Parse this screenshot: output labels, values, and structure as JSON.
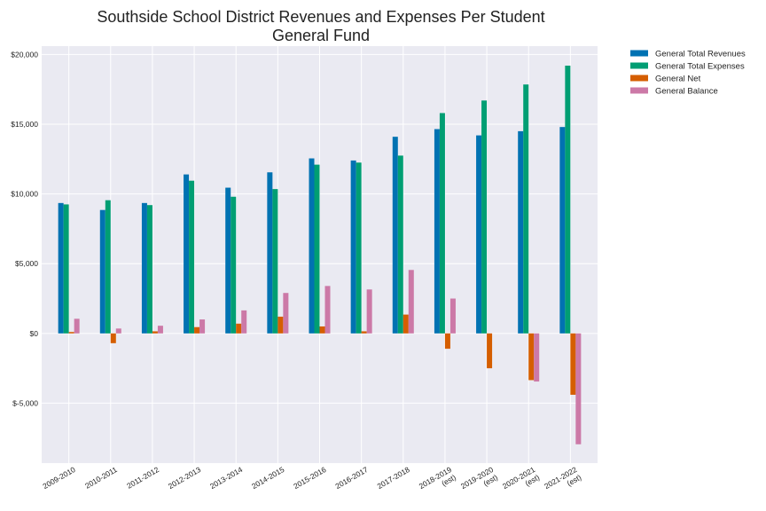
{
  "chart_data": {
    "type": "bar",
    "title": "Southside School District Revenues and Expenses Per Student",
    "subtitle": "General Fund",
    "xlabel": "",
    "ylabel": "",
    "categories": [
      [
        "2009-2010"
      ],
      [
        "2010-2011"
      ],
      [
        "2011-2012"
      ],
      [
        "2012-2013"
      ],
      [
        "2013-2014"
      ],
      [
        "2014-2015"
      ],
      [
        "2015-2016"
      ],
      [
        "2016-2017"
      ],
      [
        "2017-2018"
      ],
      [
        "2018-2019",
        "(est)"
      ],
      [
        "2019-2020",
        "(est)"
      ],
      [
        "2020-2021",
        "(est)"
      ],
      [
        "2021-2022",
        "(est)"
      ]
    ],
    "yticks": [
      {
        "value": 20000,
        "label": "$20,000"
      },
      {
        "value": 15000,
        "label": "$15,000"
      },
      {
        "value": 10000,
        "label": "$10,000"
      },
      {
        "value": 5000,
        "label": "$5,000"
      },
      {
        "value": 0,
        "label": "$0"
      },
      {
        "value": -5000,
        "label": "$-5,000"
      }
    ],
    "ylim": [
      -9300,
      20600
    ],
    "grid": true,
    "legend_position": "outside-top-right",
    "series": [
      {
        "name": "General Total Revenues",
        "color": "#0072b2",
        "values": [
          9350,
          8850,
          9350,
          11400,
          10450,
          11550,
          12550,
          12400,
          14100,
          14650,
          14200,
          14500,
          14800
        ]
      },
      {
        "name": "General Total Expenses",
        "color": "#009e73",
        "values": [
          9250,
          9550,
          9200,
          10950,
          9800,
          10350,
          12100,
          12250,
          12750,
          15800,
          16700,
          17850,
          19200
        ]
      },
      {
        "name": "General Net",
        "color": "#d55e00",
        "values": [
          100,
          -700,
          150,
          450,
          700,
          1200,
          500,
          150,
          1350,
          -1100,
          -2500,
          -3350,
          -4400
        ]
      },
      {
        "name": "General Balance",
        "color": "#cc79a7",
        "values": [
          1050,
          350,
          550,
          1000,
          1650,
          2900,
          3400,
          3150,
          4550,
          2500,
          0,
          -3450,
          -7950
        ]
      }
    ]
  }
}
